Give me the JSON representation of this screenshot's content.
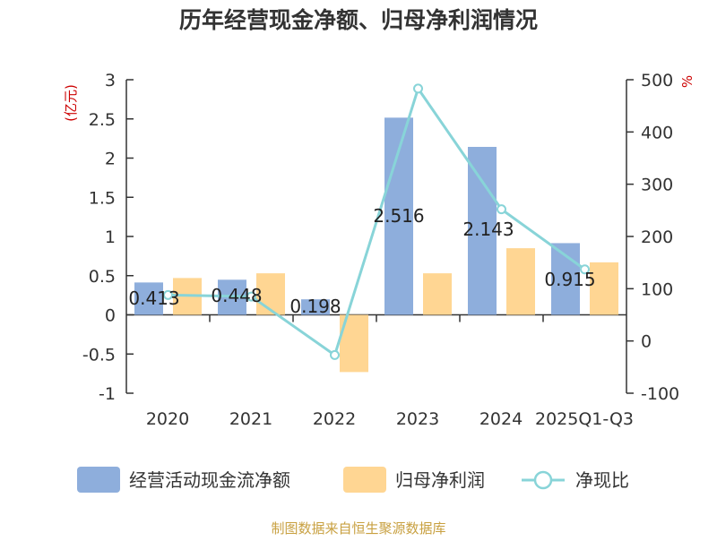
{
  "chart_data": {
    "type": "bar",
    "title": "历年经营现金净额、归母净利润情况",
    "categories": [
      "2020",
      "2021",
      "2022",
      "2023",
      "2024",
      "2025Q1-Q3"
    ],
    "series": [
      {
        "name": "经营活动现金流净额",
        "type": "bar",
        "axis": "left",
        "color": "#8eaedc",
        "values": [
          0.413,
          0.448,
          0.198,
          2.516,
          2.143,
          0.915
        ]
      },
      {
        "name": "归母净利润",
        "type": "bar",
        "axis": "left",
        "color": "#ffd693",
        "values": [
          0.47,
          0.53,
          -0.73,
          0.53,
          0.85,
          0.67
        ]
      },
      {
        "name": "净现比",
        "type": "line",
        "axis": "right",
        "color": "#88d4d8",
        "values": [
          88,
          85,
          -27,
          483,
          252,
          137
        ]
      }
    ],
    "data_labels": [
      "0.413",
      "0.448",
      "0.198",
      "2.516",
      "2.143",
      "0.915"
    ],
    "y_left": {
      "label": "(亿元)",
      "ylim": [
        -1,
        3
      ],
      "ticks": [
        "3",
        "2.5",
        "2",
        "1.5",
        "1",
        "0.5",
        "0",
        "-0.5",
        "-1"
      ]
    },
    "y_right": {
      "label": "%",
      "ylim": [
        -100,
        500
      ],
      "ticks": [
        "500",
        "400",
        "300",
        "200",
        "100",
        "0",
        "-100"
      ]
    },
    "legend": [
      "经营活动现金流净额",
      "归母净利润",
      "净现比"
    ],
    "legend_position": "bottom",
    "source": "制图数据来自恒生聚源数据库",
    "colors": {
      "axis": "#333333",
      "unit": "#cc0000",
      "source": "#c8a040"
    }
  }
}
